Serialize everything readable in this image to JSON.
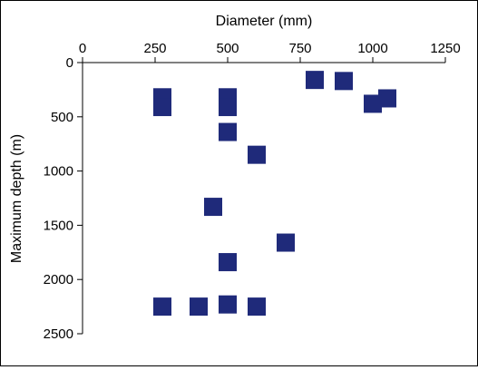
{
  "chart_data": {
    "type": "scatter",
    "title": "",
    "xlabel": "Diameter (mm)",
    "ylabel": "Maximum depth (m)",
    "xlim": [
      0,
      1250
    ],
    "ylim": [
      0,
      2500
    ],
    "x_axis_position": "top",
    "y_axis_inverted": true,
    "grid": false,
    "legend": "none",
    "marker": "square",
    "marker_color": "#1f2a7a",
    "x_ticks": [
      0,
      250,
      500,
      750,
      1000,
      1250
    ],
    "y_ticks": [
      0,
      500,
      1000,
      1500,
      2000,
      2500
    ],
    "points": [
      {
        "x": 800,
        "y": 160
      },
      {
        "x": 900,
        "y": 170
      },
      {
        "x": 1050,
        "y": 330
      },
      {
        "x": 1000,
        "y": 380
      },
      {
        "x": 275,
        "y": 320
      },
      {
        "x": 275,
        "y": 410
      },
      {
        "x": 500,
        "y": 320
      },
      {
        "x": 500,
        "y": 410
      },
      {
        "x": 500,
        "y": 640
      },
      {
        "x": 600,
        "y": 850
      },
      {
        "x": 450,
        "y": 1330
      },
      {
        "x": 700,
        "y": 1660
      },
      {
        "x": 500,
        "y": 1840
      },
      {
        "x": 275,
        "y": 2250
      },
      {
        "x": 400,
        "y": 2250
      },
      {
        "x": 500,
        "y": 2230
      },
      {
        "x": 600,
        "y": 2250
      }
    ]
  }
}
